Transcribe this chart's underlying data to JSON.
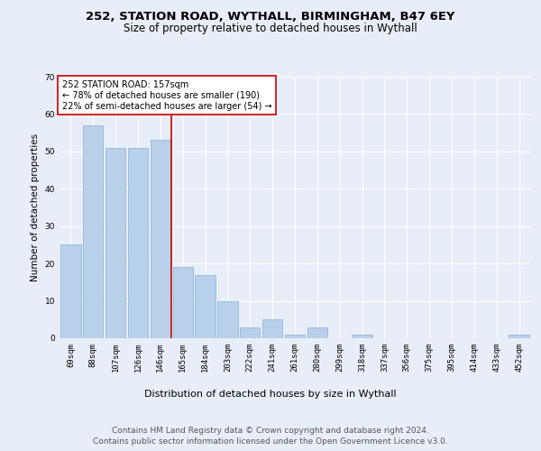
{
  "title1": "252, STATION ROAD, WYTHALL, BIRMINGHAM, B47 6EY",
  "title2": "Size of property relative to detached houses in Wythall",
  "xlabel": "Distribution of detached houses by size in Wythall",
  "ylabel": "Number of detached properties",
  "categories": [
    "69sqm",
    "88sqm",
    "107sqm",
    "126sqm",
    "146sqm",
    "165sqm",
    "184sqm",
    "203sqm",
    "222sqm",
    "241sqm",
    "261sqm",
    "280sqm",
    "299sqm",
    "318sqm",
    "337sqm",
    "356sqm",
    "375sqm",
    "395sqm",
    "414sqm",
    "433sqm",
    "452sqm"
  ],
  "values": [
    25,
    57,
    51,
    51,
    53,
    19,
    17,
    10,
    3,
    5,
    1,
    3,
    0,
    1,
    0,
    0,
    0,
    0,
    0,
    0,
    1
  ],
  "bar_color": "#b8d0ea",
  "bar_edge_color": "#93b8d8",
  "vline_x": 4.5,
  "vline_color": "#cc0000",
  "annotation_text": "252 STATION ROAD: 157sqm\n← 78% of detached houses are smaller (190)\n22% of semi-detached houses are larger (54) →",
  "annotation_box_color": "#ffffff",
  "annotation_edge_color": "#cc0000",
  "ylim": [
    0,
    70
  ],
  "yticks": [
    0,
    10,
    20,
    30,
    40,
    50,
    60,
    70
  ],
  "footer1": "Contains HM Land Registry data © Crown copyright and database right 2024.",
  "footer2": "Contains public sector information licensed under the Open Government Licence v3.0.",
  "background_color": "#e8eef8",
  "plot_background_color": "#e8eef8",
  "title1_fontsize": 9.5,
  "title2_fontsize": 8.5,
  "xlabel_fontsize": 8,
  "ylabel_fontsize": 7.5,
  "tick_fontsize": 6.5,
  "footer_fontsize": 6.5,
  "annotation_fontsize": 7
}
